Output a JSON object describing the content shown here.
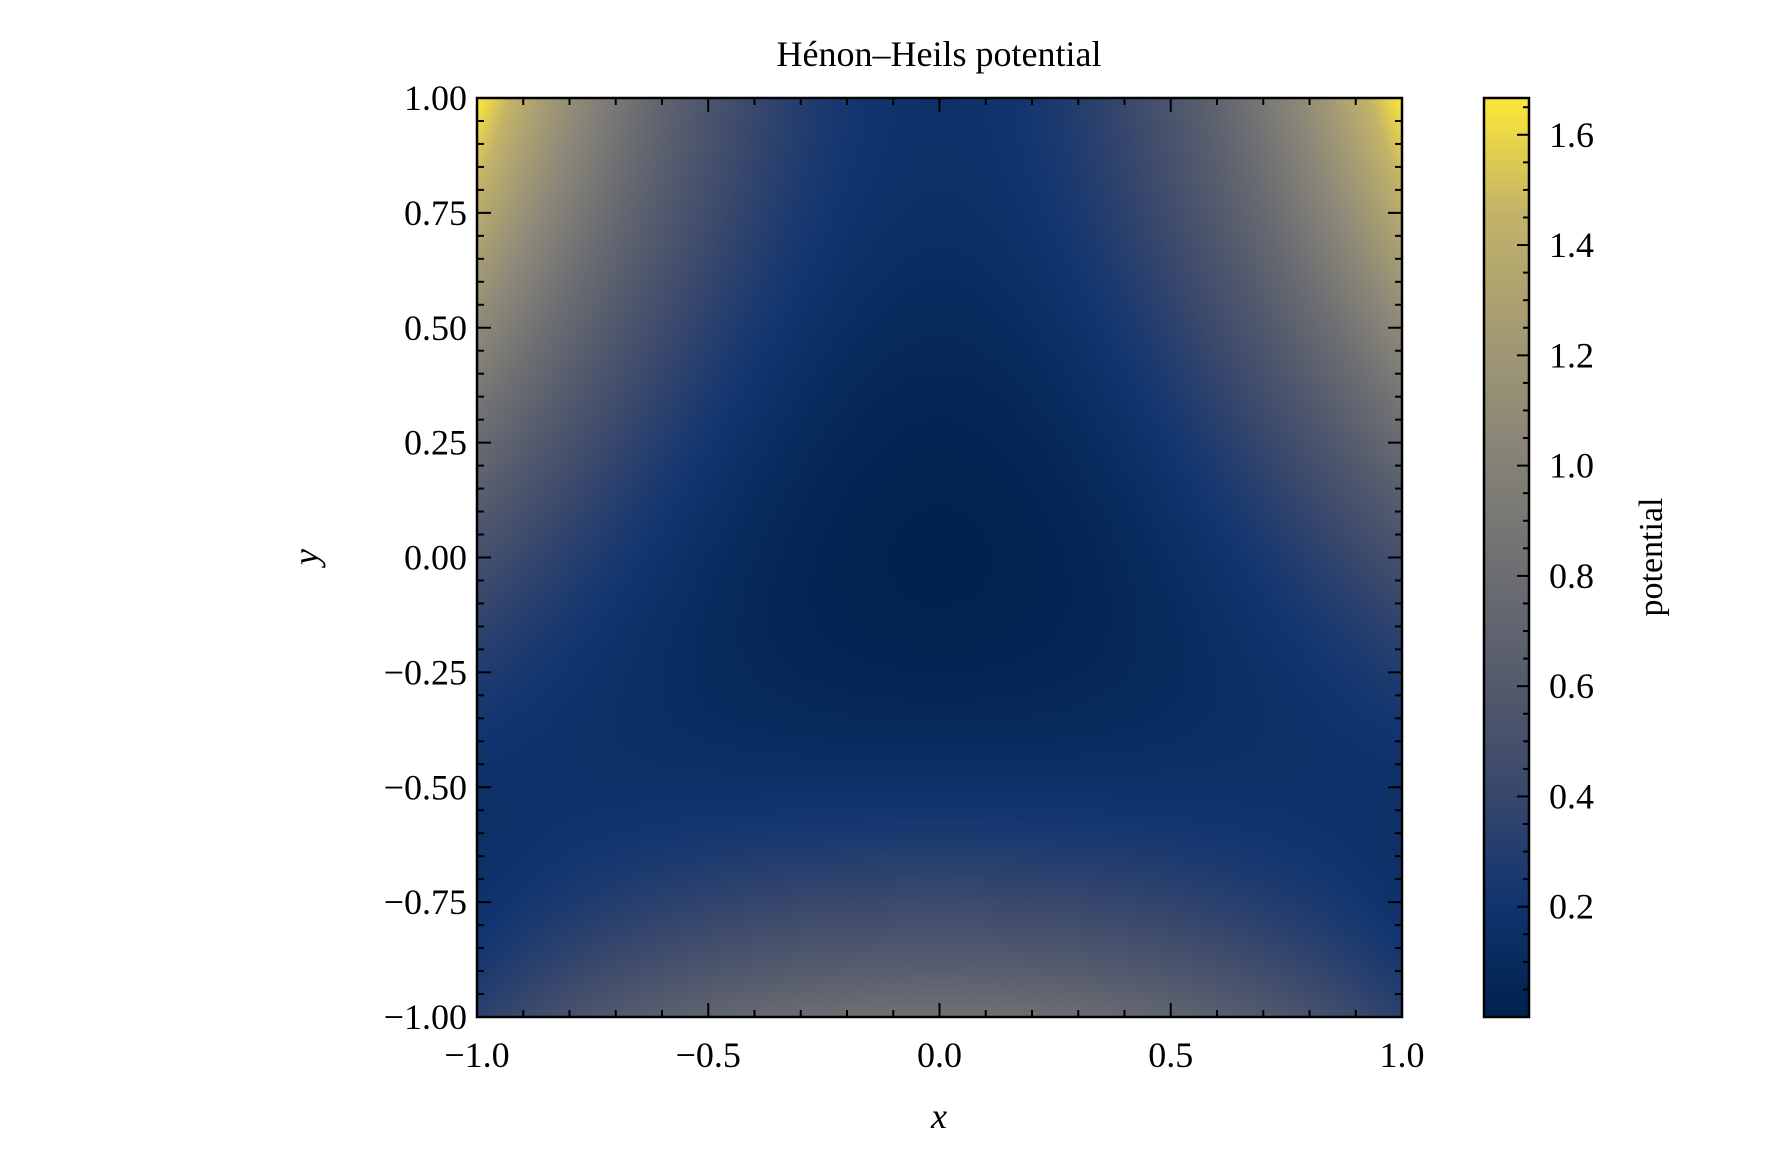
{
  "chart_data": {
    "type": "heatmap",
    "title": "Hénon–Heils potential",
    "xlabel": "x",
    "ylabel": "y",
    "function": "0.5*(x^2+y^2) + x^2*y - y^3/3",
    "xlim": [
      -1.0,
      1.0
    ],
    "ylim": [
      -1.0,
      1.0
    ],
    "xticks": [
      -1.0,
      -0.5,
      0.0,
      0.5,
      1.0
    ],
    "xtick_labels": [
      "−1.0",
      "−0.5",
      "0.0",
      "0.5",
      "1.0"
    ],
    "yticks": [
      -1.0,
      -0.75,
      -0.5,
      -0.25,
      0.0,
      0.25,
      0.5,
      0.75,
      1.0
    ],
    "ytick_labels": [
      "−1.00",
      "−0.75",
      "−0.50",
      "−0.25",
      "0.00",
      "0.25",
      "0.50",
      "0.75",
      "1.00"
    ],
    "colormap": "cividis",
    "colorbar": {
      "label": "potential",
      "range": [
        0.0,
        1.6667
      ],
      "ticks": [
        0.2,
        0.4,
        0.6,
        0.8,
        1.0,
        1.2,
        1.4,
        1.6
      ],
      "tick_labels": [
        "0.2",
        "0.4",
        "0.6",
        "0.8",
        "1.0",
        "1.2",
        "1.4",
        "1.6"
      ]
    },
    "grid": false
  }
}
